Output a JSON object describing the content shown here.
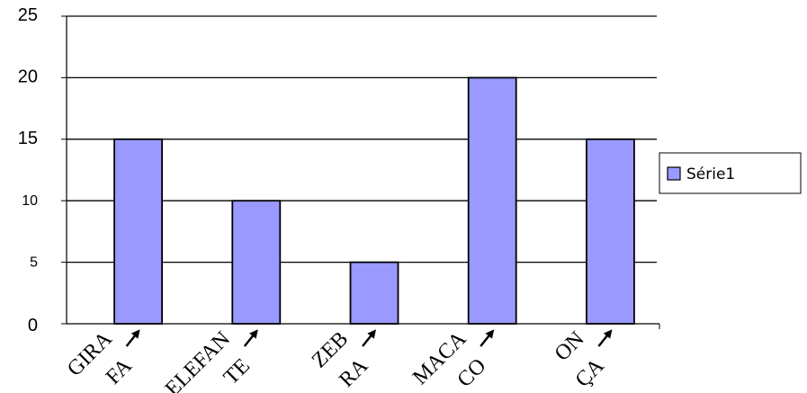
{
  "chart_data": {
    "type": "bar",
    "categories": [
      [
        "GIRA",
        "FA"
      ],
      [
        "ELEFAN",
        "TE"
      ],
      [
        "ZEB",
        "RA"
      ],
      [
        "MACA",
        "CO"
      ],
      [
        "ON",
        "ÇA"
      ]
    ],
    "series": [
      {
        "name": "Série1",
        "values": [
          15,
          10,
          5,
          20,
          15
        ],
        "color": "#9999ff"
      }
    ],
    "yticks": [
      "0",
      "5",
      "10",
      "15",
      "20",
      "25"
    ],
    "ylim": [
      0,
      25
    ],
    "grid": true,
    "legend": "right",
    "title": "",
    "xlabel": "",
    "ylabel": ""
  }
}
